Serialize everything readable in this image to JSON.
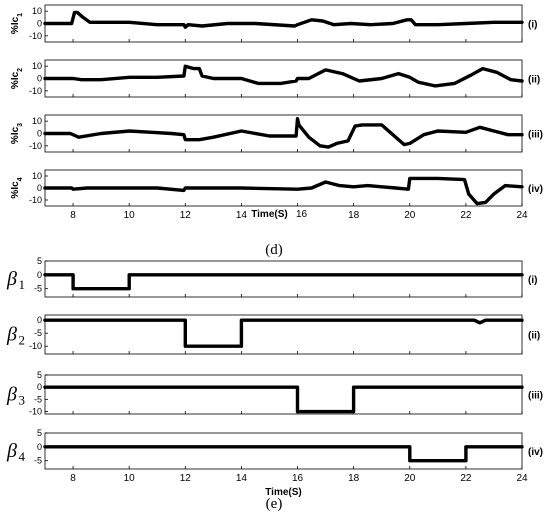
{
  "chart_data": [
    {
      "type": "line",
      "caption": "(d)",
      "xlabel": "Time(S)",
      "xlim": [
        7,
        24
      ],
      "xticks": [
        8,
        10,
        12,
        14,
        16,
        18,
        20,
        22,
        24
      ],
      "ylim": [
        -15,
        15
      ],
      "panels": [
        {
          "ylabel": "%Ic",
          "ylabel_sub": "1",
          "right_label": "(i)",
          "yticks": [
            10,
            0,
            -10
          ],
          "x": [
            7,
            7.95,
            8.05,
            8.15,
            8.35,
            8.6,
            9,
            10,
            11,
            11.95,
            12.0,
            12.1,
            12.6,
            13.5,
            14.5,
            15.9,
            16.0,
            16.5,
            16.9,
            17.3,
            17.9,
            18.6,
            19.4,
            19.9,
            20.05,
            20.2,
            20.4,
            21,
            22,
            23,
            24
          ],
          "y": [
            0,
            0,
            9,
            9,
            5,
            1,
            1,
            1,
            -1,
            -1,
            -3,
            -1,
            -2,
            0,
            0,
            -2,
            -1,
            3,
            2,
            -1,
            0,
            -1,
            0,
            3,
            3,
            -1,
            -1,
            -1,
            0,
            1,
            1
          ]
        },
        {
          "ylabel": "%Ic",
          "ylabel_sub": "2",
          "right_label": "(ii)",
          "yticks": [
            10,
            0,
            -10
          ],
          "x": [
            7,
            8,
            8.3,
            9,
            10,
            11,
            11.95,
            12.0,
            12.3,
            12.5,
            12.6,
            13,
            14,
            14.6,
            15.4,
            15.95,
            16.0,
            16.4,
            17,
            17.6,
            18.2,
            19,
            19.6,
            20.0,
            20.3,
            20.9,
            21.6,
            22.2,
            22.6,
            23.1,
            23.6,
            24
          ],
          "y": [
            0,
            0,
            -1,
            -1,
            1,
            1,
            2,
            10,
            8,
            8,
            2,
            0,
            0,
            -4,
            -4,
            -2,
            0,
            0,
            7,
            4,
            -2,
            0,
            4,
            1,
            -3,
            -6,
            -4,
            3,
            8,
            5,
            -1,
            -2
          ]
        },
        {
          "ylabel": "%Ic",
          "ylabel_sub": "3",
          "right_label": "(iii)",
          "yticks": [
            10,
            0,
            -10
          ],
          "x": [
            7,
            7.9,
            8.2,
            9,
            10,
            10.8,
            11.5,
            11.95,
            12.0,
            12.5,
            13,
            14,
            15,
            15.95,
            16.0,
            16.05,
            16.4,
            16.8,
            17.1,
            17.4,
            17.8,
            18.05,
            18.3,
            19.0,
            19.3,
            19.8,
            20.0,
            20.5,
            21,
            22,
            22.5,
            23,
            23.5,
            24
          ],
          "y": [
            0,
            0,
            -3,
            0,
            2,
            1,
            0,
            -1,
            -5,
            -5,
            -3,
            2,
            -2,
            -2,
            12,
            7,
            -3,
            -10,
            -11,
            -8,
            -6,
            6,
            7,
            7,
            1,
            -9,
            -8,
            -1,
            2,
            1,
            5,
            2,
            -1,
            -1
          ]
        },
        {
          "ylabel": "%Ic",
          "ylabel_sub": "4",
          "right_label": "(iv)",
          "yticks": [
            10,
            0,
            -10
          ],
          "x": [
            7,
            7.95,
            8.0,
            8.5,
            10,
            11,
            11.95,
            12.0,
            14,
            16,
            16.5,
            17,
            17.5,
            18,
            18.5,
            19.0,
            19.5,
            19.95,
            20.0,
            21.0,
            21.95,
            22.1,
            22.4,
            22.7,
            23.0,
            23.4,
            24
          ],
          "y": [
            0,
            0,
            -1,
            0,
            0,
            0,
            -2,
            0,
            0,
            -1,
            0,
            5,
            2,
            1,
            2,
            1,
            0,
            -1,
            8,
            8,
            7,
            -5,
            -13,
            -12,
            -5,
            2,
            1
          ]
        }
      ]
    },
    {
      "type": "line",
      "caption": "(e)",
      "xlabel": "Time(S)",
      "xlim": [
        7,
        24
      ],
      "xticks": [
        8,
        10,
        12,
        14,
        16,
        18,
        20,
        22,
        24
      ],
      "panels": [
        {
          "ylabel": "β",
          "ylabel_sub": "1",
          "right_label": "(i)",
          "yticks": [
            5,
            0,
            -5
          ],
          "ylim": [
            -8,
            5
          ],
          "x": [
            7,
            8,
            8,
            10,
            10,
            24
          ],
          "y": [
            0,
            0,
            -5,
            -5,
            0,
            0
          ]
        },
        {
          "ylabel": "β",
          "ylabel_sub": "2",
          "right_label": "(ii)",
          "yticks": [
            0,
            -5,
            -10
          ],
          "ylim": [
            -13,
            2
          ],
          "x": [
            7,
            12,
            12,
            14,
            14,
            22.3,
            22.5,
            22.7,
            24
          ],
          "y": [
            0,
            0,
            -10,
            -10,
            0,
            0,
            -1,
            0,
            0
          ]
        },
        {
          "ylabel": "β",
          "ylabel_sub": "3",
          "right_label": "(iii)",
          "yticks": [
            5,
            0,
            -5,
            -10
          ],
          "ylim": [
            -11,
            5
          ],
          "x": [
            7,
            16,
            16,
            18,
            18,
            24
          ],
          "y": [
            0,
            0,
            -10,
            -10,
            0,
            0
          ]
        },
        {
          "ylabel": "β",
          "ylabel_sub": "4",
          "right_label": "(iv)",
          "yticks": [
            5,
            0,
            -5
          ],
          "ylim": [
            -8,
            5
          ],
          "x": [
            7,
            20,
            20,
            22,
            22,
            24
          ],
          "y": [
            0,
            0,
            -5,
            -5,
            0,
            0
          ]
        }
      ]
    }
  ]
}
